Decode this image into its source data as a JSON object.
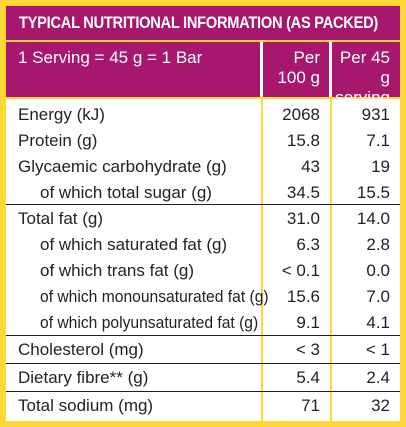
{
  "title": "TYPICAL NUTRITIONAL INFORMATION (AS PACKED)",
  "header": {
    "serving": "1 Serving = 45 g = 1 Bar",
    "per100_line1": "Per",
    "per100_line2": "100 g",
    "per45_line1": "Per 45 g",
    "per45_line2": "serving"
  },
  "rows": [
    {
      "label": "Energy (kJ)",
      "per100": "2068",
      "per45": "931"
    },
    {
      "label": "Protein (g)",
      "per100": "15.8",
      "per45": "7.1"
    },
    {
      "label": "Glycaemic carbohydrate (g)",
      "per100": "43",
      "per45": "19"
    },
    {
      "label": "of which total sugar (g)",
      "per100": "34.5",
      "per45": "15.5"
    },
    {
      "label": "Total fat (g)",
      "per100": "31.0",
      "per45": "14.0"
    },
    {
      "label": "of which saturated fat (g)",
      "per100": "6.3",
      "per45": "2.8"
    },
    {
      "label": "of which trans fat (g)",
      "per100": "< 0.1",
      "per45": "0.0"
    },
    {
      "label": "of which monounsaturated fat (g)",
      "per100": "15.6",
      "per45": "7.0"
    },
    {
      "label": "of which polyunsaturated fat (g)",
      "per100": "9.1",
      "per45": "4.1"
    },
    {
      "label": "Cholesterol (mg)",
      "per100": "< 3",
      "per45": "< 1"
    },
    {
      "label": "Dietary fibre** (g)",
      "per100": "5.4",
      "per45": "2.4"
    },
    {
      "label": "Total sodium (mg)",
      "per100": "71",
      "per45": "32"
    }
  ],
  "colors": {
    "frame": "#fdd835",
    "header": "#a8176e",
    "text": "#231f20"
  }
}
